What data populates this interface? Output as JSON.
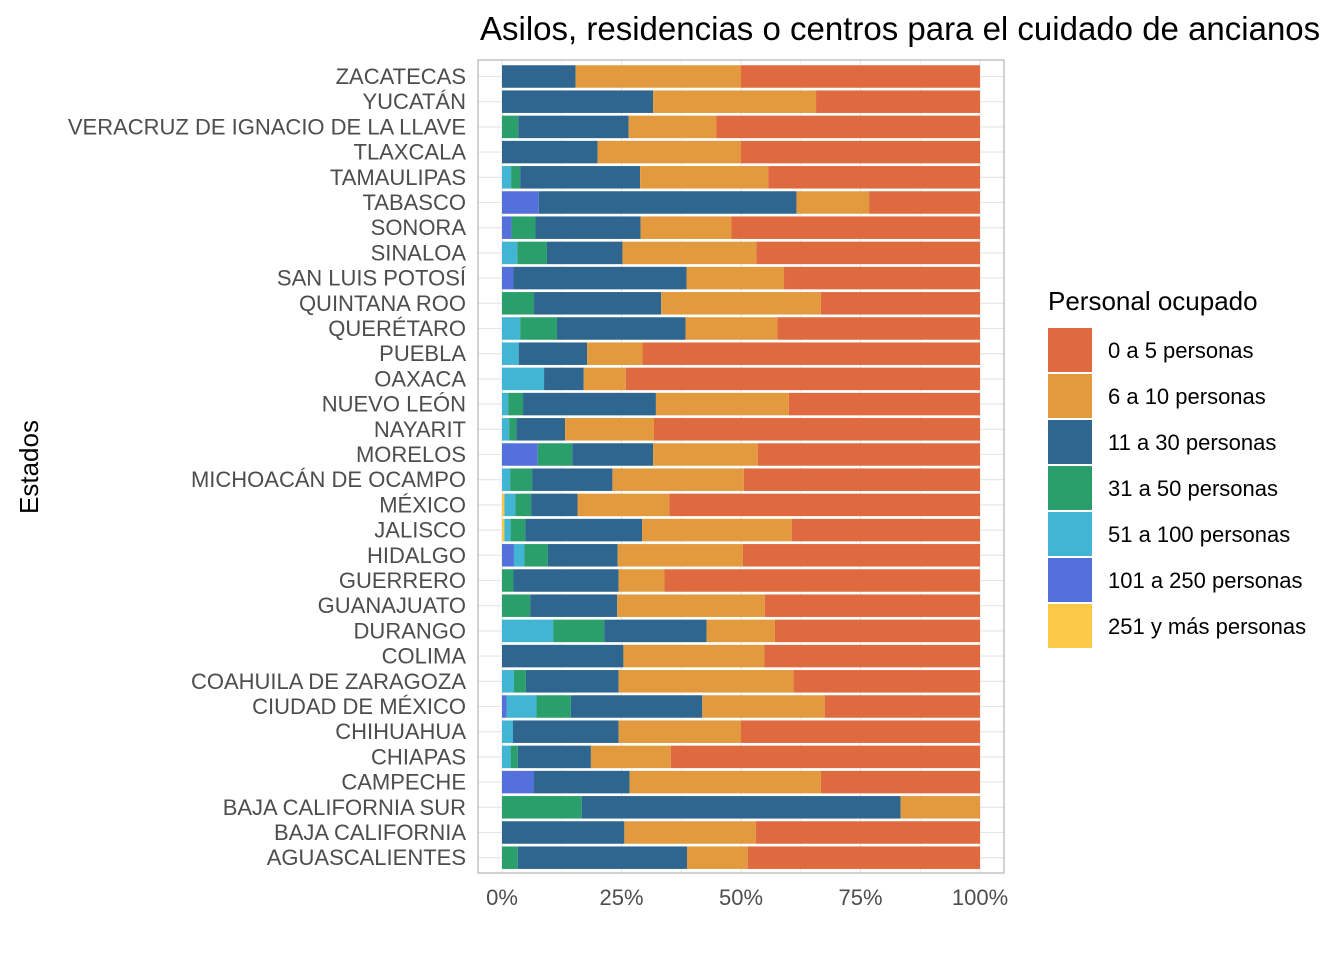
{
  "chart_data": {
    "type": "bar",
    "orientation": "horizontal",
    "stacked": true,
    "normalized": true,
    "title": "Asilos, residencias o centros para el cuidado de ancianos",
    "xlabel": "",
    "ylabel": "Estados",
    "xlim": [
      0,
      100
    ],
    "x_ticks": [
      "0%",
      "25%",
      "50%",
      "75%",
      "100%"
    ],
    "x_tick_values": [
      0,
      25,
      50,
      75,
      100
    ],
    "grid": true,
    "legend_position": "right",
    "legend_title": "Personal ocupado",
    "categories": [
      "AGUASCALIENTES",
      "BAJA CALIFORNIA",
      "BAJA CALIFORNIA SUR",
      "CAMPECHE",
      "CHIAPAS",
      "CHIHUAHUA",
      "CIUDAD DE MÉXICO",
      "COAHUILA DE ZARAGOZA",
      "COLIMA",
      "DURANGO",
      "GUANAJUATO",
      "GUERRERO",
      "HIDALGO",
      "JALISCO",
      "MÉXICO",
      "MICHOACÁN DE OCAMPO",
      "MORELOS",
      "NAYARIT",
      "NUEVO LEÓN",
      "OAXACA",
      "PUEBLA",
      "QUERÉTARO",
      "QUINTANA ROO",
      "SAN LUIS POTOSÍ",
      "SINALOA",
      "SONORA",
      "TABASCO",
      "TAMAULIPAS",
      "TLAXCALA",
      "VERACRUZ DE IGNACIO DE LA LLAVE",
      "YUCATÁN",
      "ZACATECAS"
    ],
    "series": [
      {
        "name": "251 y más personas",
        "color": "#FCC847",
        "values": [
          0,
          0,
          0,
          0,
          0,
          0,
          0,
          0,
          0,
          0,
          0,
          0,
          0,
          0.5,
          0.5,
          0,
          0,
          0,
          0,
          0,
          0,
          0,
          0,
          0,
          0,
          0,
          0,
          0,
          0,
          0,
          0,
          0
        ]
      },
      {
        "name": "101 a 250 personas",
        "color": "#5470DB",
        "values": [
          0,
          0,
          0,
          6.7,
          0,
          0,
          1,
          0,
          0,
          0,
          0,
          0,
          2.5,
          0,
          0,
          0,
          7.5,
          0,
          0,
          0,
          0,
          0,
          0,
          2.4,
          0,
          2,
          7.7,
          0,
          0,
          0,
          0,
          0
        ]
      },
      {
        "name": "51 a 100 personas",
        "color": "#42B4D4",
        "values": [
          0,
          0,
          0,
          0,
          1.8,
          2.3,
          6.2,
          2.5,
          0,
          10.7,
          0,
          0,
          2.2,
          1.3,
          2.3,
          1.7,
          0,
          1.5,
          1.3,
          8.8,
          3.5,
          3.8,
          0,
          0,
          3.2,
          0,
          0,
          1.9,
          0,
          0,
          0,
          0
        ]
      },
      {
        "name": "31 a 50 personas",
        "color": "#2A9F6B",
        "values": [
          3.3,
          0,
          16.7,
          0,
          1.5,
          0,
          7.2,
          2.5,
          0,
          10.7,
          5.9,
          2.4,
          4.9,
          3.1,
          3.3,
          4.6,
          7.2,
          1.5,
          3.1,
          0,
          0,
          7.7,
          6.7,
          0,
          6.2,
          5,
          0,
          1.9,
          0,
          3.4,
          0,
          0
        ]
      },
      {
        "name": "11 a 30 personas",
        "color": "#2F6690",
        "values": [
          35.4,
          25.6,
          66.7,
          20,
          15.3,
          22.1,
          27.5,
          19.4,
          25.4,
          21.4,
          18.2,
          22,
          14.6,
          24.4,
          9.7,
          16.8,
          16.9,
          10.2,
          27.8,
          8.3,
          14.3,
          26.9,
          26.6,
          36.2,
          15.8,
          22,
          53.9,
          25.1,
          20,
          23.1,
          31.6,
          15.4
        ]
      },
      {
        "name": "6 a 10 personas",
        "color": "#E39A3F",
        "values": [
          12.7,
          27.5,
          16.6,
          40,
          16.7,
          25.6,
          25.6,
          36.6,
          29.5,
          14.3,
          30.9,
          9.6,
          26.2,
          31.3,
          19.2,
          27.5,
          21.9,
          18.6,
          27.8,
          8.8,
          11.6,
          19.2,
          33.4,
          20.4,
          28,
          19,
          15.2,
          26.8,
          30,
          18.3,
          34.1,
          34.6
        ]
      },
      {
        "name": "0 a 5 personas",
        "color": "#E06A3F",
        "values": [
          48.6,
          46.9,
          0,
          33.3,
          64.7,
          50,
          32.5,
          39,
          45.1,
          42.9,
          45,
          66,
          49.6,
          39.4,
          65,
          49.4,
          46.5,
          68.2,
          40,
          74.1,
          70.6,
          42.4,
          33.3,
          41,
          46.8,
          52,
          23.2,
          44.3,
          50,
          55.2,
          34.3,
          50
        ]
      }
    ]
  },
  "legend_order": [
    "0 a 5 personas",
    "6 a 10 personas",
    "11 a 30 personas",
    "31 a 50 personas",
    "51 a 100 personas",
    "101 a 250 personas",
    "251 y más personas"
  ],
  "colors": {
    "background": "#ffffff",
    "panel_border": "#b3b3b3",
    "gridline": "#e5e5e5",
    "label_text": "#4d4d4d",
    "title_text": "#000000"
  }
}
